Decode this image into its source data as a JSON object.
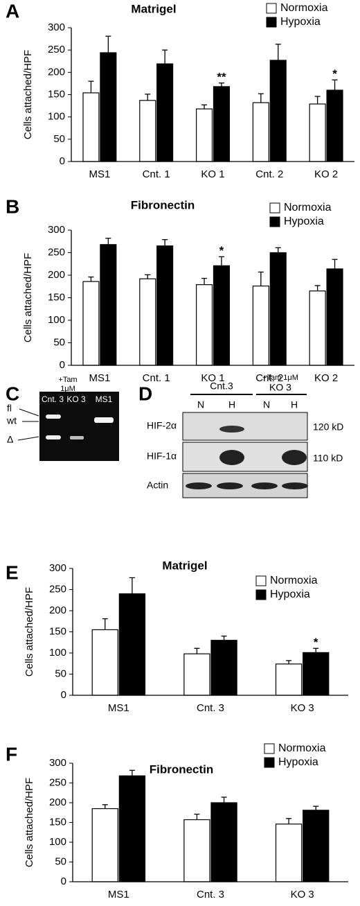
{
  "chart_data": [
    {
      "type": "bar",
      "panel_label": "A",
      "title": "Matrigel",
      "y_label": "Cells attached/HPF",
      "categories": [
        "MS1",
        "Cnt. 1",
        "KO 1",
        "Cnt. 2",
        "KO 2"
      ],
      "series": [
        {
          "name": "Normoxia",
          "color": "#ffffff",
          "values": [
            154,
            137,
            118,
            132,
            129
          ],
          "errors": [
            26,
            14,
            9,
            20,
            17
          ]
        },
        {
          "name": "Hypoxia",
          "color": "#000000",
          "values": [
            244,
            219,
            168,
            227,
            160
          ],
          "errors": [
            37,
            31,
            8,
            36,
            23
          ]
        }
      ],
      "annotations": [
        {
          "text": "**",
          "category": "KO 1"
        },
        {
          "text": "*",
          "category": "KO 2"
        }
      ],
      "ylim": [
        0,
        300
      ],
      "yticks": [
        0,
        50,
        100,
        150,
        200,
        250,
        300
      ]
    },
    {
      "type": "bar",
      "panel_label": "B",
      "title": "Fibronectin",
      "y_label": "Cells attached/HPF",
      "categories": [
        "MS1",
        "Cnt. 1",
        "KO 1",
        "Cnt. 2",
        "KO 2"
      ],
      "series": [
        {
          "name": "Normoxia",
          "color": "#ffffff",
          "values": [
            186,
            192,
            179,
            176,
            165
          ],
          "errors": [
            10,
            9,
            14,
            31,
            12
          ]
        },
        {
          "name": "Hypoxia",
          "color": "#000000",
          "values": [
            268,
            265,
            221,
            250,
            214
          ],
          "errors": [
            14,
            14,
            20,
            11,
            21
          ]
        }
      ],
      "annotations": [
        {
          "text": "*",
          "category": "KO 1"
        }
      ],
      "ylim": [
        0,
        300
      ],
      "yticks": [
        0,
        50,
        100,
        150,
        200,
        250,
        300
      ]
    },
    {
      "type": "bar",
      "panel_label": "E",
      "title": "Matrigel",
      "y_label": "Cells attached/HPF",
      "categories": [
        "MS1",
        "Cnt. 3",
        "KO 3"
      ],
      "series": [
        {
          "name": "Normoxia",
          "color": "#ffffff",
          "values": [
            155,
            98,
            74
          ],
          "errors": [
            26,
            13,
            8
          ]
        },
        {
          "name": "Hypoxia",
          "color": "#000000",
          "values": [
            240,
            130,
            101
          ],
          "errors": [
            38,
            10,
            10
          ]
        }
      ],
      "annotations": [
        {
          "text": "*",
          "category": "KO 3"
        }
      ],
      "ylim": [
        0,
        300
      ],
      "yticks": [
        0,
        50,
        100,
        150,
        200,
        250,
        300
      ]
    },
    {
      "type": "bar",
      "panel_label": "F",
      "title": "Fibronectin",
      "y_label": "Cells attached/HPF",
      "categories": [
        "MS1",
        "Cnt. 3",
        "KO 3"
      ],
      "series": [
        {
          "name": "Normoxia",
          "color": "#ffffff",
          "values": [
            185,
            157,
            146
          ],
          "errors": [
            10,
            14,
            14
          ]
        },
        {
          "name": "Hypoxia",
          "color": "#000000",
          "values": [
            268,
            200,
            181
          ],
          "errors": [
            14,
            14,
            10
          ]
        }
      ],
      "ylim": [
        0,
        300
      ],
      "yticks": [
        0,
        50,
        100,
        150,
        200,
        250,
        300
      ]
    }
  ],
  "gels": {
    "c": {
      "panel_label": "C",
      "treatment": [
        "+Tam",
        "1μM"
      ],
      "lanes": [
        "Cnt. 3",
        "KO 3",
        "MS1"
      ],
      "bands": [
        "fl",
        "wt",
        "Δ"
      ]
    },
    "d": {
      "panel_label": "D",
      "group1": "Cnt.3",
      "group2": [
        "+Tam 1μM",
        "KO 3"
      ],
      "lanes": [
        "N",
        "H",
        "N",
        "H"
      ],
      "rows": [
        "HIF-2α",
        "HIF-1α",
        "Actin"
      ],
      "sizes": [
        "120 kD",
        "110 kD"
      ]
    }
  }
}
